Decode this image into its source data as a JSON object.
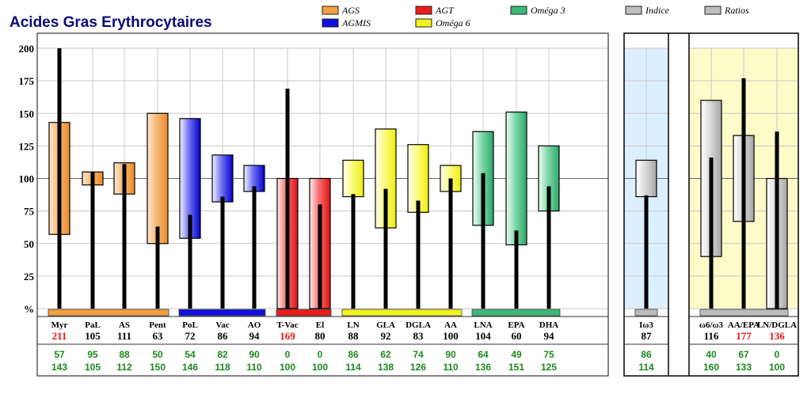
{
  "chart_data": {
    "type": "bar",
    "title": "Acides Gras Erythrocytaires",
    "legend": [
      {
        "name": "AGS",
        "color": "#f5a040"
      },
      {
        "name": "AGMIS",
        "color": "#1010e0"
      },
      {
        "name": "AGT",
        "color": "#ee1c1c"
      },
      {
        "name": "Oméga 6",
        "color": "#f2f21e"
      },
      {
        "name": "Oméga 3",
        "color": "#3ab878"
      },
      {
        "name": "Indice",
        "color": "#bdbdbd"
      },
      {
        "name": "Ratios",
        "color": "#bdbdbd"
      }
    ],
    "y_ticks": [
      "200",
      "175",
      "150",
      "125",
      "100",
      "75",
      "50",
      "25",
      "%"
    ],
    "ylim": [
      0,
      200
    ],
    "grid": true,
    "groups": [
      {
        "name": "AGS",
        "color": "#f5a040",
        "items": [
          {
            "label": "Myr",
            "value": 211,
            "low": 57,
            "high": 143,
            "alert": true
          },
          {
            "label": "PaL",
            "value": 105,
            "low": 95,
            "high": 105,
            "alert": false
          },
          {
            "label": "AS",
            "value": 111,
            "low": 88,
            "high": 112,
            "alert": false
          },
          {
            "label": "Pent",
            "value": 63,
            "low": 50,
            "high": 150,
            "alert": false
          }
        ]
      },
      {
        "name": "AGMIS",
        "color": "#1010e0",
        "items": [
          {
            "label": "PoL",
            "value": 72,
            "low": 54,
            "high": 146,
            "alert": false
          },
          {
            "label": "Vac",
            "value": 86,
            "low": 82,
            "high": 118,
            "alert": false
          },
          {
            "label": "AO",
            "value": 94,
            "low": 90,
            "high": 110,
            "alert": false
          }
        ]
      },
      {
        "name": "AGT",
        "color": "#ee1c1c",
        "items": [
          {
            "label": "T-Vac",
            "value": 169,
            "low": 0,
            "high": 100,
            "alert": true
          },
          {
            "label": "El",
            "value": 80,
            "low": 0,
            "high": 100,
            "alert": false
          }
        ]
      },
      {
        "name": "Oméga 6",
        "color": "#f2f21e",
        "items": [
          {
            "label": "LN",
            "value": 88,
            "low": 86,
            "high": 114,
            "alert": false
          },
          {
            "label": "GLA",
            "value": 92,
            "low": 62,
            "high": 138,
            "alert": false
          },
          {
            "label": "DGLA",
            "value": 83,
            "low": 74,
            "high": 126,
            "alert": false
          },
          {
            "label": "AA",
            "value": 100,
            "low": 90,
            "high": 110,
            "alert": false
          }
        ]
      },
      {
        "name": "Oméga 3",
        "color": "#3ab878",
        "items": [
          {
            "label": "LNA",
            "value": 104,
            "low": 64,
            "high": 136,
            "alert": false
          },
          {
            "label": "EPA",
            "value": 60,
            "low": 49,
            "high": 151,
            "alert": false
          },
          {
            "label": "DHA",
            "value": 94,
            "low": 75,
            "high": 125,
            "alert": false
          }
        ]
      },
      {
        "name": "Indice",
        "color": "#bdbdbd",
        "items": [
          {
            "label": "Iω3",
            "value": 87,
            "low": 86,
            "high": 114,
            "alert": false
          }
        ]
      },
      {
        "name": "Ratios",
        "color": "#bdbdbd",
        "items": [
          {
            "label": "ω6/ω3",
            "value": 116,
            "low": 40,
            "high": 160,
            "alert": false
          },
          {
            "label": "AA/EPA",
            "value": 177,
            "low": 67,
            "high": 133,
            "alert": true
          },
          {
            "label": "LN/DGLA",
            "value": 136,
            "low": 0,
            "high": 100,
            "alert": true
          }
        ]
      }
    ],
    "colors": {
      "value_normal": "#000000",
      "value_alert": "#ee1111",
      "range_text": "#1a8a1a",
      "indice_bg": "#dcefff",
      "ratios_bg": "#fdfbc8",
      "grid": "#c8c8c8"
    }
  }
}
